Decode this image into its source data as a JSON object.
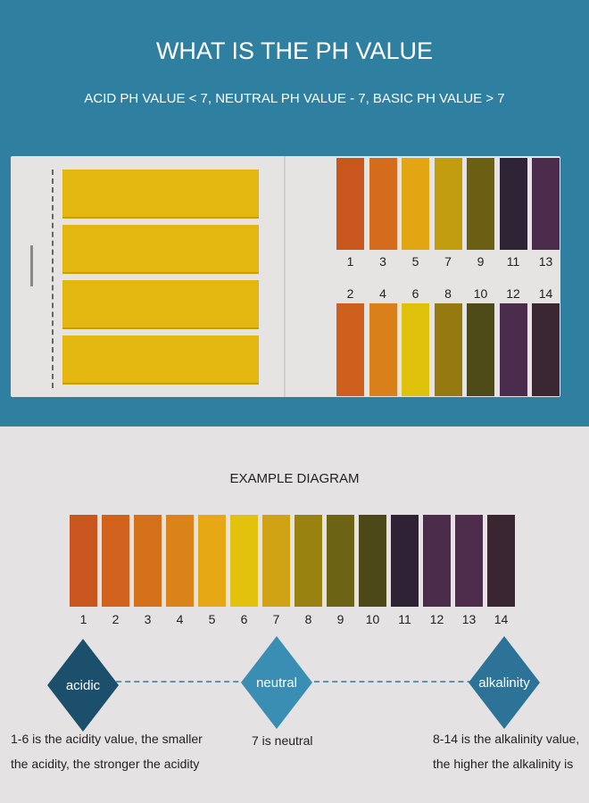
{
  "header": {
    "title": "WHAT IS THE PH VALUE",
    "subtitle": "ACID PH VALUE < 7, NEUTRAL PH VALUE - 7, BASIC PH VALUE > 7"
  },
  "card": {
    "top_labels": [
      "1",
      "3",
      "5",
      "7",
      "9",
      "11",
      "13"
    ],
    "bottom_labels": [
      "2",
      "4",
      "6",
      "8",
      "10",
      "12",
      "14"
    ],
    "top_colors": [
      "#c9561d",
      "#d56c1b",
      "#e2a612",
      "#c29d0d",
      "#6a5f12",
      "#2e2436",
      "#4b2c4c"
    ],
    "bottom_colors": [
      "#cf5f1c",
      "#d9801a",
      "#e0c10c",
      "#957a10",
      "#4e4a17",
      "#4b2c4c",
      "#3b2732"
    ],
    "strip_color": "#e3b70f"
  },
  "example": {
    "title": "EXAMPLE DIAGRAM",
    "labels": [
      "1",
      "2",
      "3",
      "4",
      "5",
      "6",
      "7",
      "8",
      "9",
      "10",
      "11",
      "12",
      "13",
      "14"
    ],
    "colors": [
      "#c8561e",
      "#d0621e",
      "#d5701b",
      "#d98318",
      "#e6a915",
      "#e3c20e",
      "#cfa313",
      "#9a8211",
      "#6d6315",
      "#4d4818",
      "#2e2234",
      "#4b2c4a",
      "#4d2c4c",
      "#3a2630"
    ]
  },
  "scale": {
    "acidic": {
      "label": "acidic",
      "color": "#1c4f6b",
      "desc1": "1-6 is the acidity value, the smaller",
      "desc2": "the acidity, the stronger the acidity"
    },
    "neutral": {
      "label": "neutral",
      "color": "#3a8db3",
      "desc1": "7 is neutral"
    },
    "alkalinity": {
      "label": "alkalinity",
      "color": "#2c7397",
      "desc1": "8-14 is the alkalinity value,",
      "desc2": "the higher the alkalinity is"
    }
  }
}
